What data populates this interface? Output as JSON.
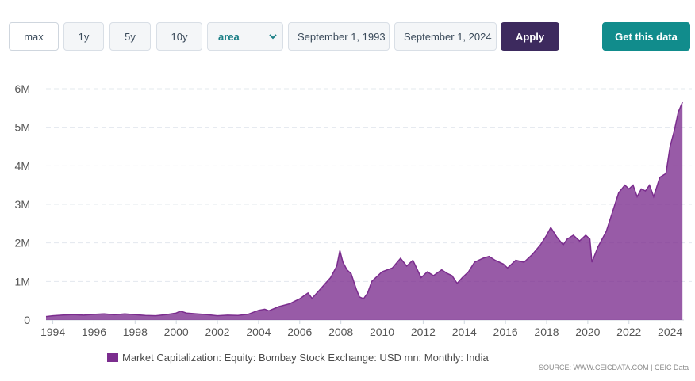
{
  "toolbar": {
    "ranges": [
      "max",
      "1y",
      "5y",
      "10y"
    ],
    "chart_type_selected": "area",
    "start_date": "September 1, 1993",
    "end_date": "September 1, 2024",
    "apply_label": "Apply",
    "get_data_label": "Get this data",
    "colors": {
      "apply_bg": "#3d2a5e",
      "get_data_bg": "#118c8c",
      "select_text": "#1b7f86"
    }
  },
  "legend": {
    "label": "Market Capitalization: Equity: Bombay Stock Exchange: USD mn: Monthly: India",
    "color": "#7b2d8e"
  },
  "source": "SOURCE: WWW.CEICDATA.COM | CEIC Data",
  "chart_data": {
    "type": "area",
    "title": "",
    "xlabel": "",
    "ylabel": "",
    "series_color": "#7b2d8e",
    "xlim": [
      1993.67,
      2024.67
    ],
    "ylim": [
      0,
      6000000
    ],
    "y_ticks": [
      0,
      1000000,
      2000000,
      3000000,
      4000000,
      5000000,
      6000000
    ],
    "y_tick_labels": [
      "0",
      "1M",
      "2M",
      "3M",
      "4M",
      "5M",
      "6M"
    ],
    "x_ticks": [
      1994,
      1996,
      1998,
      2000,
      2002,
      2004,
      2006,
      2008,
      2010,
      2012,
      2014,
      2016,
      2018,
      2020,
      2022,
      2024
    ],
    "x_tick_labels": [
      "1994",
      "1996",
      "1998",
      "2000",
      "2002",
      "2004",
      "2006",
      "2008",
      "2010",
      "2012",
      "2014",
      "2016",
      "2018",
      "2020",
      "2022",
      "2024"
    ],
    "grid": true,
    "legend_position": "bottom",
    "series": [
      {
        "name": "Market Capitalization: Equity: Bombay Stock Exchange: USD mn: Monthly: India",
        "x": [
          1993.67,
          1994.0,
          1994.5,
          1995.0,
          1995.5,
          1996.0,
          1996.5,
          1997.0,
          1997.5,
          1998.0,
          1998.5,
          1999.0,
          1999.5,
          2000.0,
          2000.2,
          2000.5,
          2001.0,
          2001.5,
          2002.0,
          2002.5,
          2003.0,
          2003.5,
          2004.0,
          2004.3,
          2004.5,
          2005.0,
          2005.5,
          2006.0,
          2006.4,
          2006.6,
          2007.0,
          2007.5,
          2007.8,
          2007.95,
          2008.1,
          2008.3,
          2008.5,
          2008.75,
          2008.9,
          2009.1,
          2009.3,
          2009.5,
          2009.8,
          2010.0,
          2010.5,
          2010.9,
          2011.2,
          2011.5,
          2011.9,
          2012.2,
          2012.5,
          2012.9,
          2013.2,
          2013.4,
          2013.65,
          2013.9,
          2014.2,
          2014.5,
          2014.9,
          2015.2,
          2015.5,
          2015.9,
          2016.1,
          2016.5,
          2016.9,
          2017.3,
          2017.7,
          2018.0,
          2018.2,
          2018.5,
          2018.8,
          2019.0,
          2019.3,
          2019.6,
          2019.9,
          2020.1,
          2020.2,
          2020.5,
          2020.9,
          2021.2,
          2021.5,
          2021.8,
          2022.0,
          2022.2,
          2022.4,
          2022.6,
          2022.8,
          2023.0,
          2023.2,
          2023.5,
          2023.8,
          2024.0,
          2024.2,
          2024.4,
          2024.6
        ],
        "values": [
          90000,
          110000,
          130000,
          140000,
          125000,
          145000,
          160000,
          135000,
          160000,
          140000,
          120000,
          110000,
          140000,
          180000,
          230000,
          180000,
          160000,
          140000,
          110000,
          125000,
          120000,
          150000,
          250000,
          280000,
          240000,
          350000,
          420000,
          550000,
          700000,
          560000,
          800000,
          1100000,
          1400000,
          1800000,
          1500000,
          1300000,
          1200000,
          800000,
          600000,
          550000,
          700000,
          1000000,
          1150000,
          1250000,
          1350000,
          1600000,
          1400000,
          1550000,
          1100000,
          1250000,
          1150000,
          1300000,
          1200000,
          1150000,
          950000,
          1100000,
          1250000,
          1500000,
          1600000,
          1650000,
          1550000,
          1450000,
          1350000,
          1550000,
          1500000,
          1700000,
          1950000,
          2200000,
          2400000,
          2150000,
          1950000,
          2100000,
          2200000,
          2050000,
          2200000,
          2100000,
          1500000,
          1900000,
          2300000,
          2800000,
          3300000,
          3500000,
          3400000,
          3500000,
          3200000,
          3400000,
          3350000,
          3500000,
          3200000,
          3700000,
          3800000,
          4500000,
          4900000,
          5400000,
          5650000
        ]
      }
    ]
  }
}
